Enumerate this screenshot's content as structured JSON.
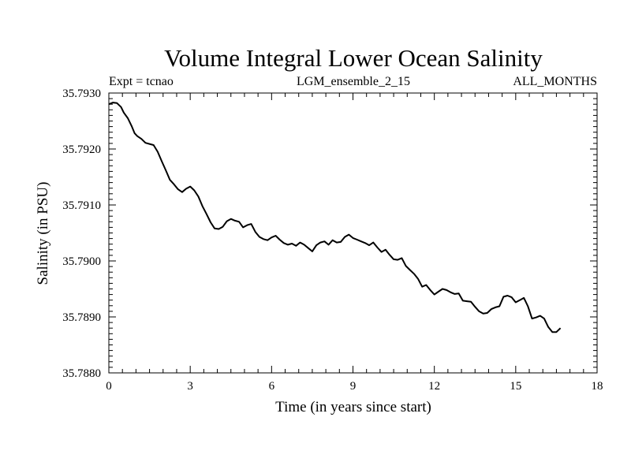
{
  "header": {
    "title": "Volume Integral Lower Ocean Salinity",
    "expt": "Expt = tcnao",
    "ensemble": "LGM_ensemble_2_15",
    "months": "ALL_MONTHS"
  },
  "chart_data": {
    "type": "line",
    "title": "Volume Integral Lower Ocean Salinity",
    "xlabel": "Time (in years since start)",
    "ylabel": "Salinity (in PSU)",
    "xlim": [
      0,
      18
    ],
    "ylim": [
      35.788,
      35.793
    ],
    "xticks": [
      0,
      3,
      6,
      9,
      12,
      15,
      18
    ],
    "xtick_labels": [
      "0",
      "3",
      "6",
      "9",
      "12",
      "15",
      "18"
    ],
    "yticks": [
      35.788,
      35.789,
      35.79,
      35.791,
      35.792,
      35.793
    ],
    "ytick_labels": [
      "35.7880",
      "35.7890",
      "35.7900",
      "35.7910",
      "35.7920",
      "35.7930"
    ],
    "grid": false,
    "series": [
      {
        "name": "salinity",
        "color": "#000000",
        "x": [
          0.0,
          0.15,
          0.3,
          0.45,
          0.55,
          0.7,
          0.85,
          0.95,
          1.05,
          1.2,
          1.35,
          1.5,
          1.65,
          1.8,
          1.95,
          2.1,
          2.25,
          2.4,
          2.55,
          2.7,
          2.85,
          3.0,
          3.15,
          3.3,
          3.45,
          3.6,
          3.75,
          3.9,
          4.05,
          4.2,
          4.35,
          4.5,
          4.65,
          4.8,
          4.95,
          5.1,
          5.25,
          5.4,
          5.55,
          5.7,
          5.85,
          6.0,
          6.15,
          6.3,
          6.45,
          6.6,
          6.75,
          6.9,
          7.05,
          7.2,
          7.35,
          7.5,
          7.65,
          7.8,
          7.95,
          8.1,
          8.25,
          8.4,
          8.55,
          8.7,
          8.85,
          9.0,
          9.15,
          9.3,
          9.45,
          9.6,
          9.75,
          9.9,
          10.05,
          10.2,
          10.35,
          10.5,
          10.65,
          10.8,
          10.95,
          11.1,
          11.25,
          11.4,
          11.55,
          11.7,
          11.85,
          12.0,
          12.15,
          12.3,
          12.45,
          12.6,
          12.75,
          12.9,
          13.05,
          13.2,
          13.35,
          13.5,
          13.65,
          13.8,
          13.95,
          14.1,
          14.25,
          14.4,
          14.55,
          14.7,
          14.85,
          15.0,
          15.15,
          15.3,
          15.45,
          15.6,
          15.75,
          15.9,
          16.05,
          16.2,
          16.35,
          16.5,
          16.65
        ],
        "values": [
          35.7928,
          35.79283,
          35.79282,
          35.79275,
          35.79265,
          35.79255,
          35.7924,
          35.79228,
          35.79223,
          35.79218,
          35.79211,
          35.79209,
          35.79207,
          35.79195,
          35.79178,
          35.79162,
          35.79145,
          35.79137,
          35.79128,
          35.79123,
          35.79129,
          35.79133,
          35.79126,
          35.79115,
          35.79098,
          35.79084,
          35.79069,
          35.79058,
          35.79057,
          35.79061,
          35.79071,
          35.79075,
          35.79072,
          35.7907,
          35.7906,
          35.79064,
          35.79066,
          35.79052,
          35.79043,
          35.79039,
          35.79037,
          35.79042,
          35.79045,
          35.79038,
          35.79032,
          35.79029,
          35.79031,
          35.79027,
          35.79033,
          35.79029,
          35.79023,
          35.79017,
          35.79028,
          35.79033,
          35.79035,
          35.79029,
          35.79037,
          35.79033,
          35.79034,
          35.79043,
          35.79047,
          35.79041,
          35.79038,
          35.79035,
          35.79032,
          35.79028,
          35.79033,
          35.79024,
          35.79016,
          35.7902,
          35.79011,
          35.79003,
          35.79002,
          35.79005,
          35.78991,
          35.78984,
          35.78977,
          35.78968,
          35.78954,
          35.78957,
          35.78948,
          35.7894,
          35.78945,
          35.7895,
          35.78948,
          35.78944,
          35.78941,
          35.78942,
          35.78929,
          35.78928,
          35.78927,
          35.78918,
          35.7891,
          35.78906,
          35.78907,
          35.78914,
          35.78917,
          35.78919,
          35.78936,
          35.78938,
          35.78935,
          35.78926,
          35.7893,
          35.78934,
          35.78919,
          35.78897,
          35.78899,
          35.78902,
          35.78897,
          35.78882,
          35.78873,
          35.78873,
          35.7888
        ]
      }
    ]
  }
}
